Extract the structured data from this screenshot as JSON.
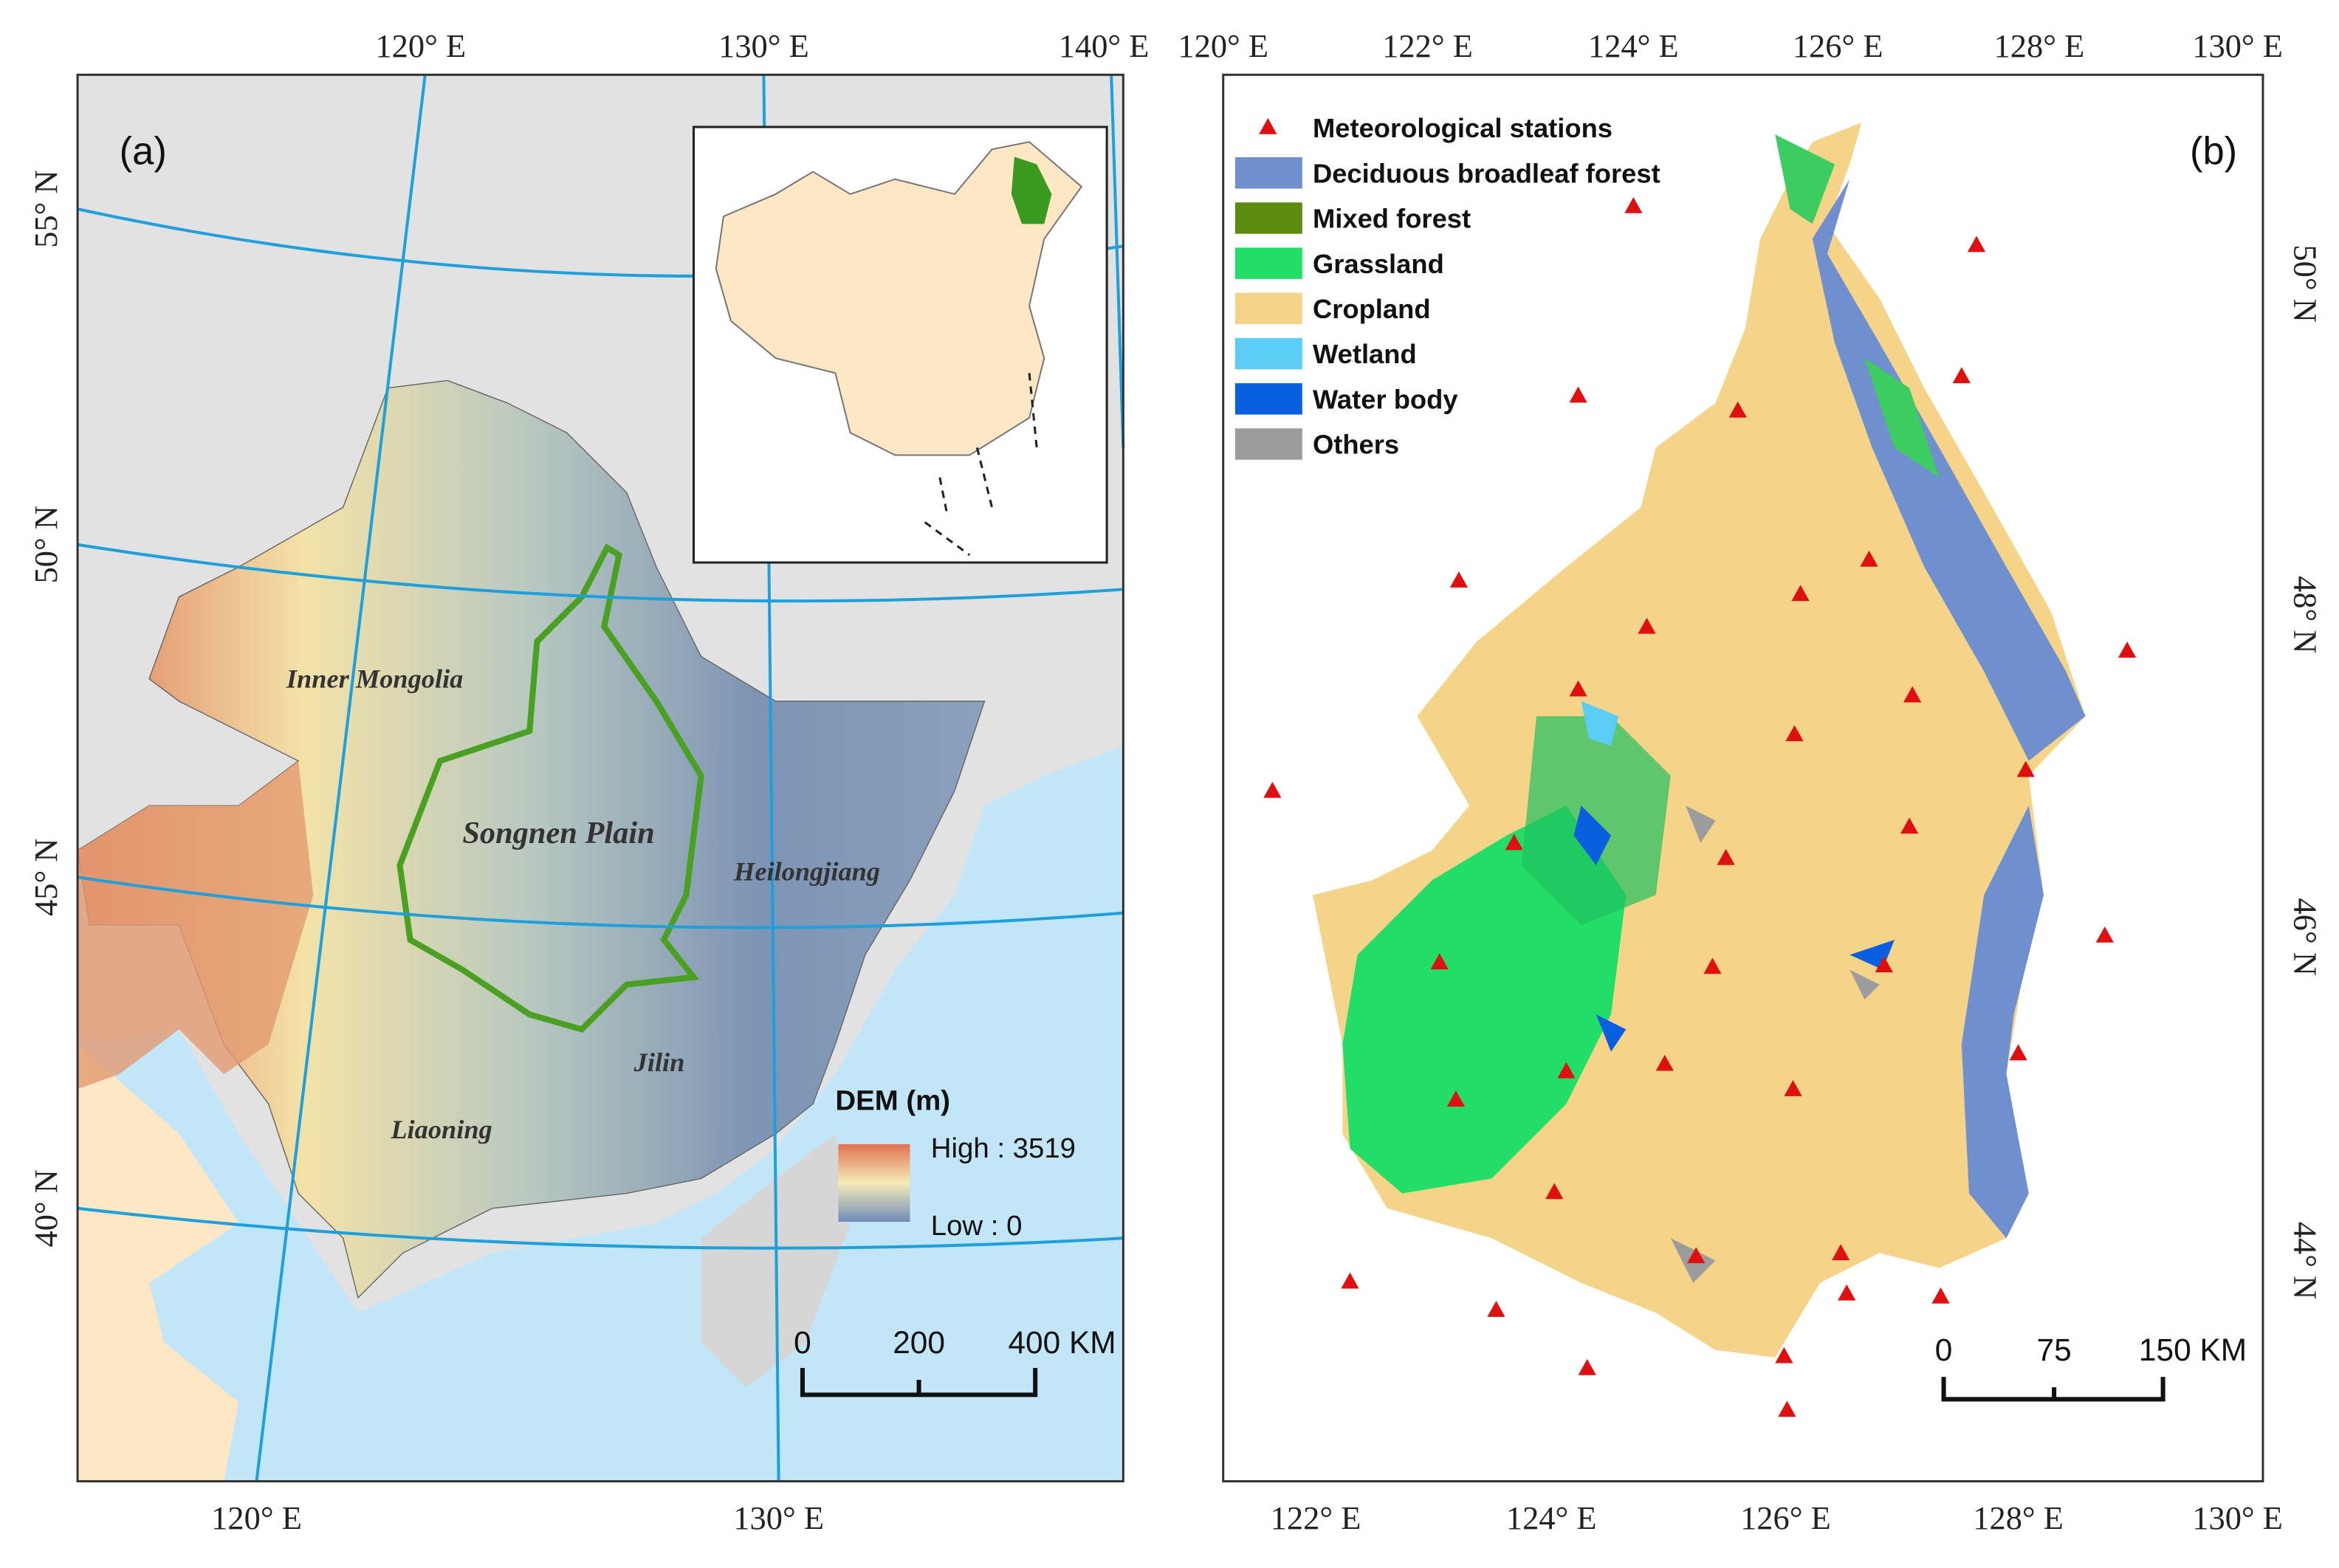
{
  "panel_a": {
    "label": "(a)",
    "top_labels": [
      "120° E",
      "130° E",
      "140° E"
    ],
    "left_labels": [
      "55° N",
      "50° N",
      "45° N",
      "40° N"
    ],
    "bottom_labels": [
      "120° E",
      "130° E"
    ],
    "regions": [
      "Inner Mongolia",
      "Songnen Plain",
      "Heilongjiang",
      "Jilin",
      "Liaoning"
    ],
    "legend": {
      "title": "DEM (m)",
      "high": "High : 3519",
      "low": "Low  : 0"
    },
    "scale_bar": [
      "0",
      "200",
      "400 KM"
    ]
  },
  "panel_b": {
    "label": "(b)",
    "top_labels": [
      "120° E",
      "122° E",
      "124° E",
      "126° E",
      "128° E",
      "130° E"
    ],
    "right_labels": [
      "50° N",
      "48° N",
      "46° N",
      "44° N"
    ],
    "bottom_labels": [
      "122° E",
      "124° E",
      "126° E",
      "128° E",
      "130° E"
    ],
    "legend": [
      "Meteorological stations",
      "Deciduous broadleaf forest",
      "Mixed forest",
      "Grassland",
      "Cropland",
      "Wetland",
      "Water body",
      "Others"
    ],
    "scale_bar": [
      "0",
      "75",
      "150 KM"
    ]
  }
}
